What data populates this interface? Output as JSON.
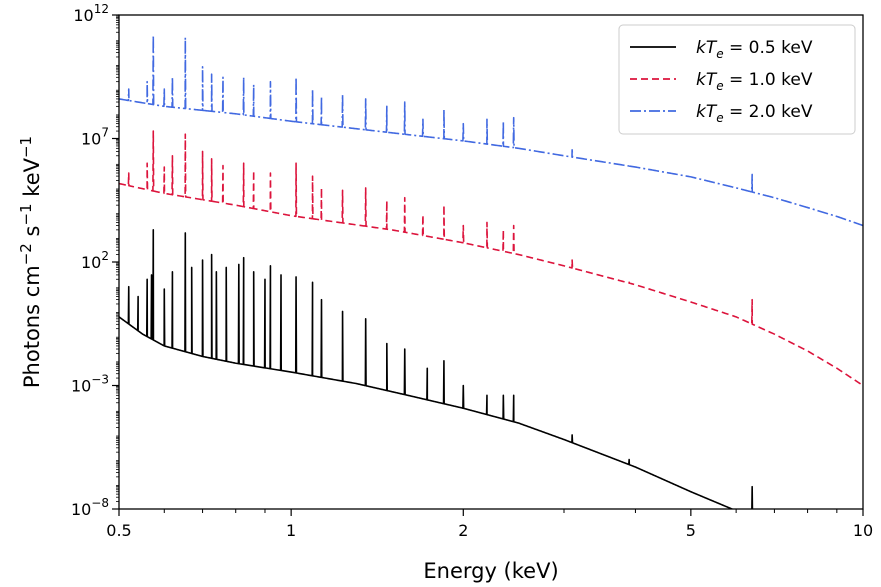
{
  "chart_data": {
    "type": "line",
    "title": "",
    "xlabel": "Energy (keV)",
    "ylabel_main": "Photons cm",
    "ylabel_sup1": "−2",
    "ylabel_mid": " s",
    "ylabel_sup2": "−1",
    "ylabel_end": " keV",
    "ylabel_sup3": "−1",
    "x_scale": "log",
    "y_scale": "log",
    "xlim": [
      0.5,
      10
    ],
    "ylim": [
      1e-08,
      1000000000000.0
    ],
    "x_ticks": [
      {
        "value": 0.5,
        "label": "0.5"
      },
      {
        "value": 1,
        "label": "1"
      },
      {
        "value": 2,
        "label": "2"
      },
      {
        "value": 5,
        "label": "5"
      },
      {
        "value": 10,
        "label": "10"
      }
    ],
    "y_ticks": [
      {
        "value": 1e-08,
        "base": "10",
        "exp": "−8"
      },
      {
        "value": 0.001,
        "base": "10",
        "exp": "−3"
      },
      {
        "value": 100.0,
        "base": "10",
        "exp": "2"
      },
      {
        "value": 10000000.0,
        "base": "10",
        "exp": "7"
      },
      {
        "value": 1000000000000.0,
        "base": "10",
        "exp": "12"
      }
    ],
    "grid": false,
    "legend_position": "top-right",
    "series": [
      {
        "label_var": "kT",
        "label_sub": "e",
        "label_rest": " = 0.5 keV",
        "color": "#000000",
        "dash": "solid",
        "continuum": [
          [
            0.5,
            0.6
          ],
          [
            0.55,
            0.12
          ],
          [
            0.6,
            0.04
          ],
          [
            0.7,
            0.015
          ],
          [
            0.8,
            0.008
          ],
          [
            1.0,
            0.0035
          ],
          [
            1.3,
            0.0012
          ],
          [
            1.6,
            0.0004
          ],
          [
            2.0,
            0.00012
          ],
          [
            2.5,
            3e-05
          ],
          [
            3.0,
            6.5e-06
          ],
          [
            4.0,
            5e-07
          ],
          [
            5.0,
            5e-08
          ],
          [
            6.0,
            8.5e-09
          ],
          [
            7.0,
            2.5e-09
          ],
          [
            8.0,
            9e-10
          ]
        ],
        "lines": [
          [
            0.52,
            10
          ],
          [
            0.54,
            4
          ],
          [
            0.56,
            20
          ],
          [
            0.57,
            30
          ],
          [
            0.574,
            2000
          ],
          [
            0.6,
            8
          ],
          [
            0.62,
            40
          ],
          [
            0.653,
            1500
          ],
          [
            0.67,
            60
          ],
          [
            0.7,
            120
          ],
          [
            0.726,
            200
          ],
          [
            0.74,
            40
          ],
          [
            0.77,
            60
          ],
          [
            0.81,
            80
          ],
          [
            0.826,
            150
          ],
          [
            0.86,
            40
          ],
          [
            0.9,
            20
          ],
          [
            0.92,
            70
          ],
          [
            0.96,
            30
          ],
          [
            1.02,
            25
          ],
          [
            1.09,
            15
          ],
          [
            1.13,
            3
          ],
          [
            1.23,
            1
          ],
          [
            1.35,
            0.5
          ],
          [
            1.47,
            0.05
          ],
          [
            1.58,
            0.03
          ],
          [
            1.73,
            0.005
          ],
          [
            1.85,
            0.01
          ],
          [
            2.0,
            0.001
          ],
          [
            2.2,
            0.0004
          ],
          [
            2.35,
            0.0004
          ],
          [
            2.45,
            0.0004
          ],
          [
            3.1,
            1e-05
          ],
          [
            3.9,
            1e-06
          ],
          [
            6.4,
            8e-08
          ]
        ]
      },
      {
        "label_var": "kT",
        "label_sub": "e",
        "label_rest": " = 1.0 keV",
        "color": "#dc143c",
        "dash": "7,4",
        "continuum": [
          [
            0.5,
            150000
          ],
          [
            0.6,
            60000
          ],
          [
            0.8,
            20000
          ],
          [
            1.0,
            7500
          ],
          [
            1.5,
            2000
          ],
          [
            2.0,
            600
          ],
          [
            2.5,
            200
          ],
          [
            3.0,
            70
          ],
          [
            4.0,
            12
          ],
          [
            5.0,
            2.4
          ],
          [
            6.0,
            0.6
          ],
          [
            7.0,
            0.12
          ],
          [
            8.0,
            0.025
          ],
          [
            9.0,
            0.005
          ],
          [
            10.0,
            0.001
          ]
        ],
        "lines": [
          [
            0.52,
            400000
          ],
          [
            0.56,
            1000000
          ],
          [
            0.574,
            20000000
          ],
          [
            0.6,
            700000
          ],
          [
            0.62,
            2000000
          ],
          [
            0.653,
            15000000
          ],
          [
            0.7,
            3000000
          ],
          [
            0.726,
            1500000
          ],
          [
            0.76,
            800000
          ],
          [
            0.826,
            1000000
          ],
          [
            0.86,
            500000
          ],
          [
            0.92,
            400000
          ],
          [
            1.02,
            1000000
          ],
          [
            1.09,
            300000
          ],
          [
            1.13,
            100000
          ],
          [
            1.23,
            80000
          ],
          [
            1.35,
            100000
          ],
          [
            1.47,
            30000
          ],
          [
            1.58,
            40000
          ],
          [
            1.7,
            8000
          ],
          [
            1.85,
            20000
          ],
          [
            2.0,
            3000
          ],
          [
            2.2,
            4000
          ],
          [
            2.35,
            2000
          ],
          [
            2.45,
            3000
          ],
          [
            3.1,
            120
          ],
          [
            3.9,
            15
          ],
          [
            6.4,
            3
          ]
        ]
      },
      {
        "label_var": "kT",
        "label_sub": "e",
        "label_rest": " = 2.0 keV",
        "color": "#4169e1",
        "dash": "11,3,2,3",
        "continuum": [
          [
            0.5,
            400000000
          ],
          [
            0.6,
            200000000
          ],
          [
            0.8,
            100000000
          ],
          [
            1.0,
            50000000
          ],
          [
            1.5,
            17000000
          ],
          [
            2.0,
            8000000
          ],
          [
            2.5,
            4000000
          ],
          [
            3.0,
            2000000
          ],
          [
            4.0,
            700000
          ],
          [
            5.0,
            280000
          ],
          [
            6.0,
            100000
          ],
          [
            7.0,
            40000
          ],
          [
            8.0,
            16000
          ],
          [
            9.0,
            7000
          ],
          [
            10.0,
            3000
          ]
        ],
        "lines": [
          [
            0.52,
            1000000000
          ],
          [
            0.56,
            2000000000
          ],
          [
            0.574,
            150000000000
          ],
          [
            0.6,
            1000000000
          ],
          [
            0.62,
            3000000000
          ],
          [
            0.653,
            120000000000
          ],
          [
            0.7,
            8000000000
          ],
          [
            0.726,
            4000000000
          ],
          [
            0.76,
            3000000000
          ],
          [
            0.826,
            3000000000
          ],
          [
            0.86,
            1500000000
          ],
          [
            0.92,
            2000000000
          ],
          [
            1.02,
            3000000000
          ],
          [
            1.09,
            1000000000
          ],
          [
            1.13,
            500000000
          ],
          [
            1.23,
            600000000
          ],
          [
            1.35,
            400000000
          ],
          [
            1.47,
            200000000
          ],
          [
            1.58,
            300000000
          ],
          [
            1.7,
            60000000
          ],
          [
            1.85,
            150000000
          ],
          [
            2.0,
            40000000
          ],
          [
            2.2,
            60000000
          ],
          [
            2.35,
            50000000
          ],
          [
            2.45,
            70000000
          ],
          [
            3.1,
            3500000
          ],
          [
            3.9,
            900000
          ],
          [
            6.4,
            350000
          ]
        ]
      }
    ]
  }
}
